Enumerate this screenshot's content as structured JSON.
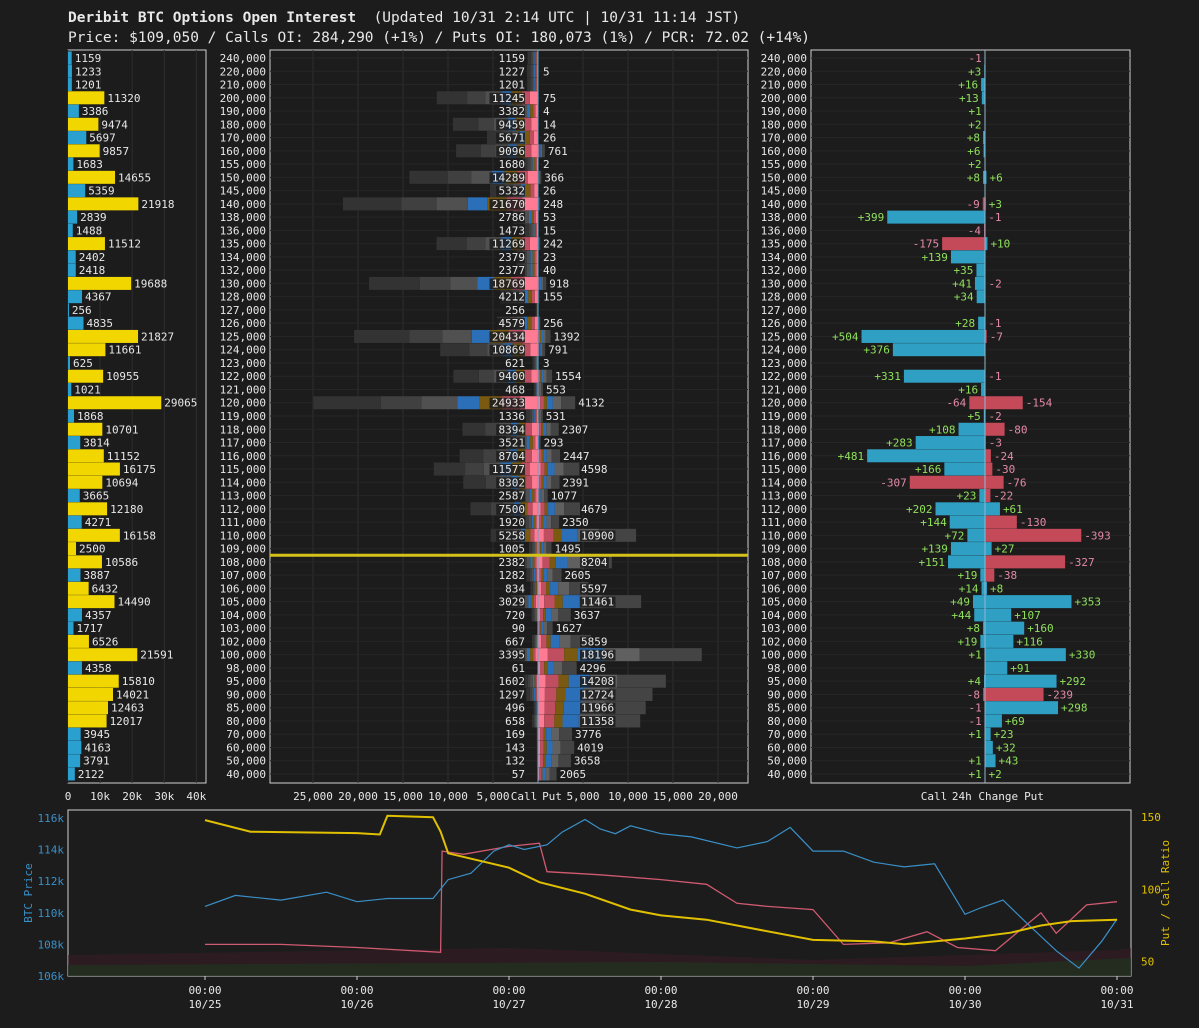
{
  "header": {
    "title": "Deribit BTC Options Open Interest",
    "updated": "(Updated 10/31 2:14 UTC | 10/31 11:14 JST)",
    "subtitle": "Price: $109,050 / Calls OI: 284,290 (+1%) / Puts OI: 180,073 (1%) / PCR: 72.02 (+14%)"
  },
  "colors": {
    "bg": "#1c1c1c",
    "call_total": "#f2d600",
    "put_total": "#29a0cf",
    "delta_call": "#2f9fc4",
    "delta_put": "#c44a5a",
    "pos_text": "#8fe05c",
    "neg_text": "#e48aa6",
    "price_line": "#d4c21a",
    "btc_line": "#3a90c8",
    "pcr_line": "#e0c000",
    "pink_line": "#d05a70"
  },
  "chart_data": [
    {
      "type": "bar",
      "name": "total-oi-by-strike",
      "categories": [
        "240,000",
        "220,000",
        "210,000",
        "200,000",
        "190,000",
        "180,000",
        "170,000",
        "160,000",
        "155,000",
        "150,000",
        "145,000",
        "140,000",
        "138,000",
        "136,000",
        "135,000",
        "134,000",
        "132,000",
        "130,000",
        "128,000",
        "127,000",
        "126,000",
        "125,000",
        "124,000",
        "123,000",
        "122,000",
        "121,000",
        "120,000",
        "119,000",
        "118,000",
        "117,000",
        "116,000",
        "115,000",
        "114,000",
        "113,000",
        "112,000",
        "111,000",
        "110,000",
        "109,000",
        "108,000",
        "107,000",
        "106,000",
        "105,000",
        "104,000",
        "103,000",
        "102,000",
        "100,000",
        "98,000",
        "95,000",
        "90,000",
        "85,000",
        "80,000",
        "70,000",
        "60,000",
        "50,000",
        "40,000"
      ],
      "values": [
        1159,
        1233,
        1201,
        11320,
        3386,
        9474,
        5697,
        9857,
        1683,
        14655,
        5359,
        21918,
        2839,
        1488,
        11512,
        2402,
        2418,
        19688,
        4367,
        256,
        4835,
        21827,
        11661,
        625,
        10955,
        1021,
        29065,
        1868,
        10701,
        3814,
        11152,
        16175,
        10694,
        3665,
        12180,
        4271,
        16158,
        2500,
        10586,
        3887,
        6432,
        14490,
        4357,
        1717,
        6526,
        21591,
        4358,
        15810,
        14021,
        12463,
        12017,
        3945,
        4163,
        3791,
        2122
      ],
      "bar_color": [
        "b",
        "b",
        "b",
        "y",
        "b",
        "y",
        "b",
        "y",
        "b",
        "y",
        "b",
        "y",
        "b",
        "b",
        "y",
        "b",
        "b",
        "y",
        "b",
        "b",
        "b",
        "y",
        "y",
        "b",
        "y",
        "b",
        "y",
        "b",
        "y",
        "b",
        "y",
        "y",
        "y",
        "b",
        "y",
        "b",
        "y",
        "y",
        "y",
        "b",
        "y",
        "y",
        "b",
        "b",
        "y",
        "y",
        "b",
        "y",
        "y",
        "y",
        "y",
        "b",
        "b",
        "b",
        "b"
      ],
      "x_ticks": [
        "0",
        "10k",
        "20k",
        "30k",
        "40k"
      ],
      "xlim": [
        0,
        43000
      ]
    },
    {
      "type": "bar",
      "name": "call-put-oi-by-strike",
      "categories": [
        "240,000",
        "220,000",
        "210,000",
        "200,000",
        "190,000",
        "180,000",
        "170,000",
        "160,000",
        "155,000",
        "150,000",
        "145,000",
        "140,000",
        "138,000",
        "136,000",
        "135,000",
        "134,000",
        "132,000",
        "130,000",
        "128,000",
        "127,000",
        "126,000",
        "125,000",
        "124,000",
        "123,000",
        "122,000",
        "121,000",
        "120,000",
        "119,000",
        "118,000",
        "117,000",
        "116,000",
        "115,000",
        "114,000",
        "113,000",
        "112,000",
        "111,000",
        "110,000",
        "109,000",
        "108,000",
        "107,000",
        "106,000",
        "105,000",
        "104,000",
        "103,000",
        "102,000",
        "100,000",
        "98,000",
        "95,000",
        "90,000",
        "85,000",
        "80,000",
        "70,000",
        "60,000",
        "50,000",
        "40,000"
      ],
      "series": [
        {
          "name": "Call",
          "values": [
            1159,
            1227,
            1201,
            11245,
            3382,
            9459,
            5671,
            9096,
            1680,
            14289,
            5332,
            21670,
            2786,
            1473,
            11269,
            2379,
            2377,
            18769,
            4212,
            256,
            4579,
            20434,
            10869,
            621,
            9400,
            468,
            24933,
            1336,
            8394,
            3521,
            8704,
            11577,
            8302,
            2587,
            7500,
            1920,
            5258,
            1005,
            2382,
            1282,
            834,
            3029,
            720,
            90,
            667,
            3395,
            61,
            1602,
            1297,
            496,
            658,
            169,
            143,
            132,
            57
          ]
        },
        {
          "name": "Put",
          "values": [
            null,
            5,
            null,
            75,
            4,
            14,
            26,
            761,
            2,
            366,
            26,
            248,
            53,
            15,
            242,
            23,
            40,
            918,
            155,
            null,
            256,
            1392,
            791,
            3,
            1554,
            553,
            4132,
            531,
            2307,
            293,
            2447,
            4598,
            2391,
            1077,
            4679,
            2350,
            10900,
            1495,
            8204,
            2605,
            5597,
            11461,
            3637,
            1627,
            5859,
            18196,
            4296,
            14208,
            12724,
            11966,
            11358,
            3776,
            4019,
            3658,
            2065
          ]
        }
      ],
      "x_ticks": [
        "25,000",
        "20,000",
        "15,000",
        "10,000",
        "5,000",
        "Call",
        "Put",
        "5,000",
        "10,000",
        "15,000",
        "20,000"
      ],
      "current_price_strike": "109,050"
    },
    {
      "type": "bar",
      "name": "24h-change-by-strike",
      "categories": [
        "240,000",
        "220,000",
        "210,000",
        "200,000",
        "190,000",
        "180,000",
        "170,000",
        "160,000",
        "155,000",
        "150,000",
        "145,000",
        "140,000",
        "138,000",
        "136,000",
        "135,000",
        "134,000",
        "132,000",
        "130,000",
        "128,000",
        "127,000",
        "126,000",
        "125,000",
        "124,000",
        "123,000",
        "122,000",
        "121,000",
        "120,000",
        "119,000",
        "118,000",
        "117,000",
        "116,000",
        "115,000",
        "114,000",
        "113,000",
        "112,000",
        "111,000",
        "110,000",
        "109,000",
        "108,000",
        "107,000",
        "106,000",
        "105,000",
        "104,000",
        "103,000",
        "102,000",
        "100,000",
        "98,000",
        "95,000",
        "90,000",
        "85,000",
        "80,000",
        "70,000",
        "60,000",
        "50,000",
        "40,000"
      ],
      "series": [
        {
          "name": "Call",
          "values": [
            -1,
            3,
            16,
            13,
            1,
            2,
            8,
            6,
            2,
            8,
            null,
            -9,
            399,
            -4,
            -175,
            139,
            35,
            41,
            34,
            null,
            28,
            504,
            376,
            null,
            331,
            16,
            -64,
            5,
            108,
            283,
            481,
            166,
            -307,
            23,
            202,
            144,
            72,
            139,
            151,
            19,
            14,
            49,
            44,
            8,
            19,
            1,
            null,
            4,
            -8,
            -1,
            -1,
            1,
            null,
            1,
            1
          ]
        },
        {
          "name": "Put",
          "values": [
            null,
            null,
            null,
            null,
            null,
            null,
            null,
            null,
            null,
            6,
            null,
            3,
            -1,
            null,
            10,
            null,
            null,
            -2,
            null,
            null,
            -1,
            -7,
            null,
            null,
            -1,
            null,
            -154,
            -2,
            -80,
            -3,
            -24,
            -30,
            -76,
            -22,
            61,
            -130,
            -393,
            27,
            -327,
            -38,
            8,
            353,
            107,
            160,
            116,
            330,
            91,
            292,
            -239,
            298,
            69,
            23,
            32,
            43,
            2
          ]
        }
      ],
      "labels": {
        "call": [
          "-1",
          "+3",
          "+16",
          "+13",
          "+1",
          "+2",
          "+8",
          "+6",
          "+2",
          "+8",
          "",
          "-9",
          "+399",
          "-4",
          "-175",
          "+139",
          "+35",
          "+41",
          "+34",
          "",
          "+28",
          "+504",
          "+376",
          "",
          "+331",
          "+16",
          "-64",
          "+5",
          "+108",
          "+283",
          "+481",
          "+166",
          "-307",
          "+23",
          "+202",
          "+144",
          "+72",
          "+139",
          "+151",
          "+19",
          "+14",
          "+49",
          "+44",
          "+8",
          "+19",
          "+1",
          "",
          "+4",
          "-8",
          "-1",
          "-1",
          "+1",
          "",
          "+1",
          "+1"
        ],
        "put": [
          "",
          "",
          "",
          "",
          "",
          "",
          "",
          "",
          "",
          "+6",
          "",
          "+3",
          "-1",
          "",
          "+10",
          "",
          "",
          "-2",
          "",
          "",
          "-1",
          "-7",
          "",
          "",
          "-1",
          "",
          "-154",
          "-2",
          "-80",
          "-3",
          "-24",
          "-30",
          "-76",
          "-22",
          "+61",
          "-130",
          "-393",
          "+27",
          "-327",
          "-38",
          "+8",
          "+353",
          "+107",
          "+160",
          "+116",
          "+330",
          "+91",
          "+292",
          "-239",
          "+298",
          "+69",
          "+23",
          "+32",
          "+43",
          "+2"
        ]
      },
      "x_labels": [
        "Call",
        "24h Change",
        "Put"
      ]
    },
    {
      "type": "line",
      "name": "price-and-pcr-history",
      "x_ticks": [
        {
          "time": "00:00",
          "date": "10/25"
        },
        {
          "time": "00:00",
          "date": "10/26"
        },
        {
          "time": "00:00",
          "date": "10/27"
        },
        {
          "time": "00:00",
          "date": "10/28"
        },
        {
          "time": "00:00",
          "date": "10/29"
        },
        {
          "time": "00:00",
          "date": "10/30"
        },
        {
          "time": "00:00",
          "date": "10/31"
        }
      ],
      "ylabel_left": "BTC Price",
      "ylabel_right": "Put / Call Ratio",
      "y_left_ticks": [
        "116k",
        "114k",
        "112k",
        "110k",
        "108k",
        "106k"
      ],
      "y_left_lim": [
        106000,
        116500
      ],
      "y_right_ticks": [
        "150",
        "100",
        "50"
      ],
      "y_right_lim": [
        40,
        155
      ],
      "series": [
        {
          "name": "BTC Price",
          "x": [
            0,
            0.2,
            0.5,
            0.8,
            1.0,
            1.2,
            1.5,
            1.6,
            1.75,
            1.9,
            2.0,
            2.1,
            2.25,
            2.35,
            2.5,
            2.6,
            2.7,
            2.8,
            3.0,
            3.2,
            3.5,
            3.7,
            3.85,
            4.0,
            4.2,
            4.4,
            4.6,
            4.8,
            5.0,
            5.1,
            5.25,
            5.4,
            5.6,
            5.75,
            5.9,
            6.0
          ],
          "values": [
            110400,
            111100,
            110800,
            111300,
            110700,
            110900,
            110900,
            112100,
            112500,
            113900,
            114300,
            114000,
            114300,
            115100,
            115900,
            115300,
            115000,
            115500,
            115000,
            114800,
            114100,
            114500,
            115400,
            113900,
            113900,
            113200,
            112900,
            113100,
            109900,
            110300,
            110800,
            109400,
            107600,
            106500,
            108200,
            109600
          ]
        },
        {
          "name": "Put / Call Ratio",
          "x": [
            0,
            0.3,
            1.0,
            1.15,
            1.2,
            1.5,
            1.55,
            1.6,
            2.0,
            2.2,
            2.5,
            2.8,
            3.0,
            3.3,
            3.5,
            4.0,
            4.4,
            4.6,
            5.0,
            5.3,
            5.5,
            5.7,
            6.0
          ],
          "values": [
            148,
            140,
            139,
            138,
            151,
            150,
            140,
            125,
            115,
            105,
            97,
            86,
            82,
            79,
            75,
            65,
            64,
            62,
            66,
            70,
            75,
            78,
            79
          ]
        },
        {
          "name": "Call OI",
          "x": [
            0,
            0.5,
            1.0,
            1.55,
            1.56,
            1.7,
            2.0,
            2.2,
            2.25,
            2.6,
            3.0,
            3.3,
            3.5,
            3.7,
            4.0,
            4.2,
            4.5,
            4.75,
            4.95,
            5.2,
            5.5,
            5.6,
            5.8,
            6.0
          ],
          "values": [
            108000,
            108000,
            107800,
            107500,
            113900,
            113700,
            114200,
            114400,
            112600,
            112400,
            112100,
            111800,
            110600,
            110400,
            110200,
            108000,
            108100,
            108800,
            107800,
            107600,
            110000,
            108700,
            110500,
            110700
          ]
        }
      ]
    }
  ]
}
